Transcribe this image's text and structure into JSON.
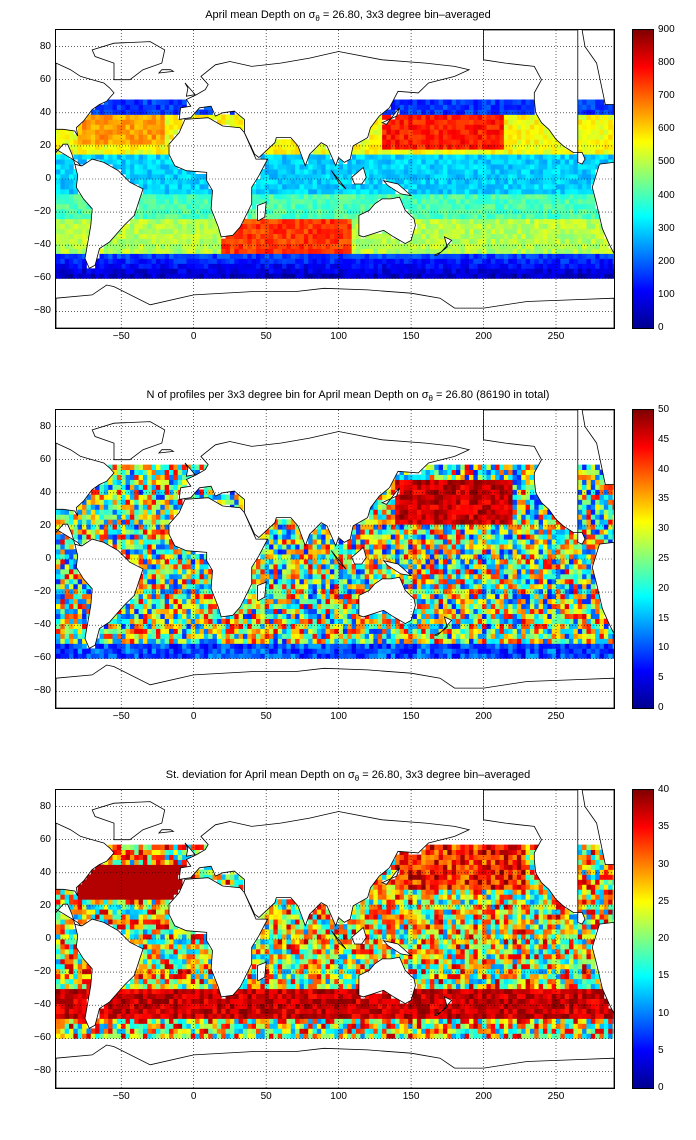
{
  "panels": [
    {
      "title_prefix": "April mean Depth on ",
      "title_suffix": " = 26.80, 3x3 degree bin–averaged",
      "sigma": "σ",
      "sigma_sub": "θ",
      "colorbar_ticks": [
        "900",
        "800",
        "700",
        "600",
        "500",
        "400",
        "300",
        "200",
        "100",
        "0"
      ],
      "colorbar_range": [
        0,
        900
      ]
    },
    {
      "title_prefix": "N of profiles per 3x3 degree bin for April mean Depth on ",
      "title_suffix": " = 26.80 (86190 in total)",
      "sigma": "σ",
      "sigma_sub": "θ",
      "colorbar_ticks": [
        "50",
        "45",
        "40",
        "35",
        "30",
        "25",
        "20",
        "15",
        "10",
        "5",
        "0"
      ],
      "colorbar_range": [
        0,
        50
      ]
    },
    {
      "title_prefix": "St. deviation for April mean Depth on ",
      "title_suffix": " = 26.80, 3x3 degree bin–averaged",
      "sigma": "σ",
      "sigma_sub": "θ",
      "colorbar_ticks": [
        "40",
        "35",
        "30",
        "25",
        "20",
        "15",
        "10",
        "5",
        "0"
      ],
      "colorbar_range": [
        0,
        40
      ]
    }
  ],
  "axes": {
    "y_ticks": [
      "80",
      "60",
      "40",
      "20",
      "0",
      "−20",
      "−40",
      "−60",
      "−80"
    ],
    "x_ticks": [
      "−50",
      "0",
      "50",
      "100",
      "150",
      "200",
      "250"
    ],
    "x_range": [
      -95,
      290
    ],
    "y_range": [
      -90,
      90
    ],
    "grid": "dotted"
  }
}
